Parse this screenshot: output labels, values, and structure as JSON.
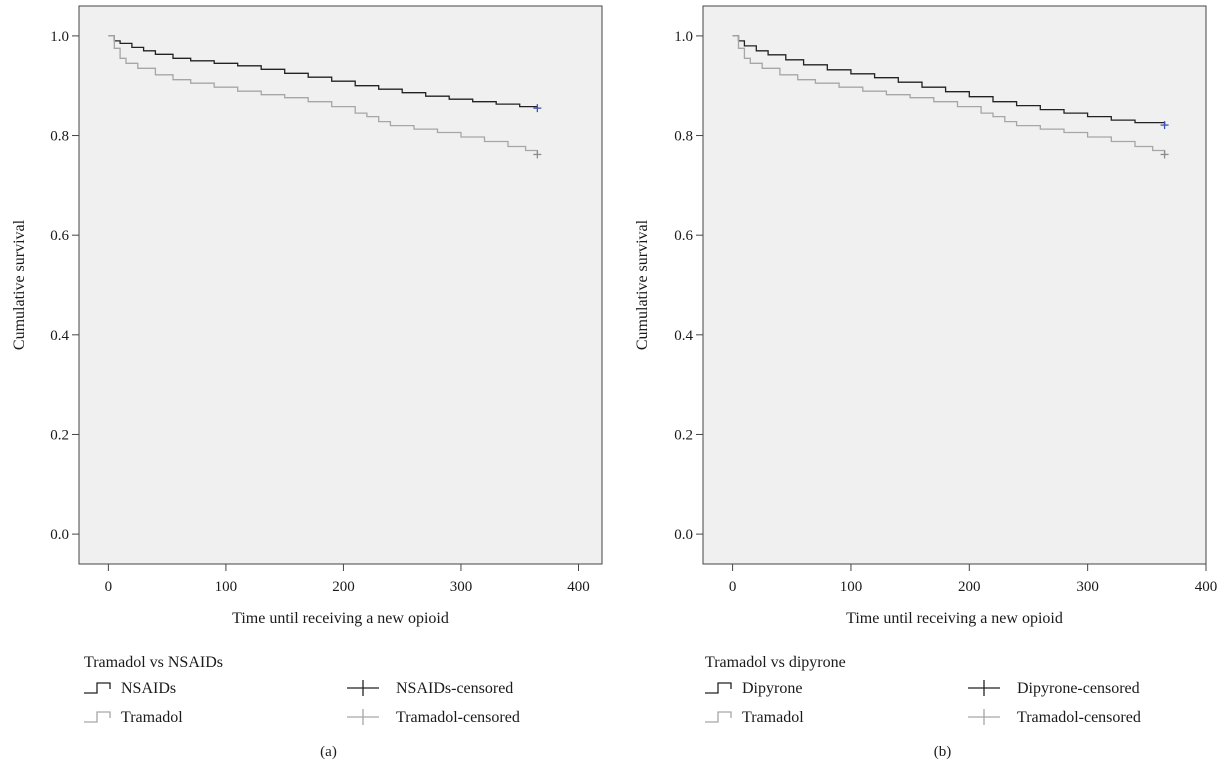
{
  "chart_data": [
    {
      "type": "line",
      "panel_label": "(a)",
      "xlabel": "Time until receiving a new opioid",
      "ylabel": "Cumulative survival",
      "xlim": [
        -25,
        420
      ],
      "ylim": [
        -0.06,
        1.06
      ],
      "x_ticks": [
        0,
        100,
        200,
        300,
        400
      ],
      "y_ticks": [
        0.0,
        0.2,
        0.4,
        0.6,
        0.8,
        1.0
      ],
      "grid": false,
      "legend": {
        "title": "Tramadol vs NSAIDs",
        "placement": "bottom",
        "entries": [
          "NSAIDs",
          "Tramadol",
          "NSAIDs-censored",
          "Tramadol-censored"
        ]
      },
      "colors": {
        "background": "#f0f0f0",
        "series_1": "#222222",
        "series_2": "#a6a6a6",
        "censor_1": "#3b55b0",
        "censor_2": "#8c8c8c"
      },
      "series": [
        {
          "name": "NSAIDs",
          "x": [
            0,
            5,
            10,
            20,
            30,
            40,
            55,
            70,
            90,
            110,
            130,
            150,
            170,
            190,
            210,
            230,
            250,
            270,
            290,
            310,
            330,
            350,
            365
          ],
          "y": [
            1.0,
            0.99,
            0.985,
            0.977,
            0.97,
            0.963,
            0.955,
            0.95,
            0.945,
            0.94,
            0.933,
            0.925,
            0.917,
            0.909,
            0.9,
            0.893,
            0.886,
            0.879,
            0.873,
            0.868,
            0.863,
            0.858,
            0.855
          ],
          "censored": {
            "x": 365,
            "y": 0.855
          }
        },
        {
          "name": "Tramadol",
          "x": [
            0,
            5,
            10,
            15,
            25,
            40,
            55,
            70,
            90,
            110,
            130,
            150,
            170,
            190,
            210,
            220,
            230,
            240,
            260,
            280,
            300,
            320,
            340,
            355,
            365
          ],
          "y": [
            1.0,
            0.975,
            0.955,
            0.945,
            0.935,
            0.922,
            0.912,
            0.905,
            0.897,
            0.889,
            0.882,
            0.876,
            0.868,
            0.858,
            0.845,
            0.838,
            0.828,
            0.82,
            0.813,
            0.806,
            0.797,
            0.788,
            0.778,
            0.77,
            0.762
          ],
          "censored": {
            "x": 365,
            "y": 0.762
          }
        }
      ]
    },
    {
      "type": "line",
      "panel_label": "(b)",
      "xlabel": "Time until receiving a new opioid",
      "ylabel": "Cumulative survival",
      "xlim": [
        -25,
        400
      ],
      "ylim": [
        -0.06,
        1.06
      ],
      "x_ticks": [
        0,
        100,
        200,
        300,
        400
      ],
      "y_ticks": [
        0.0,
        0.2,
        0.4,
        0.6,
        0.8,
        1.0
      ],
      "grid": false,
      "legend": {
        "title": "Tramadol vs dipyrone",
        "placement": "bottom",
        "entries": [
          "Dipyrone",
          "Tramadol",
          "Dipyrone-censored",
          "Tramadol-censored"
        ]
      },
      "colors": {
        "background": "#f0f0f0",
        "series_1": "#222222",
        "series_2": "#a6a6a6",
        "censor_1": "#3b55b0",
        "censor_2": "#8c8c8c"
      },
      "series": [
        {
          "name": "Dipyrone",
          "x": [
            0,
            5,
            10,
            20,
            30,
            45,
            60,
            80,
            100,
            120,
            140,
            160,
            180,
            200,
            220,
            240,
            260,
            280,
            300,
            320,
            340,
            365
          ],
          "y": [
            1.0,
            0.99,
            0.98,
            0.97,
            0.962,
            0.952,
            0.942,
            0.932,
            0.924,
            0.916,
            0.907,
            0.897,
            0.888,
            0.878,
            0.868,
            0.86,
            0.852,
            0.845,
            0.838,
            0.831,
            0.826,
            0.821
          ],
          "censored": {
            "x": 365,
            "y": 0.821
          }
        },
        {
          "name": "Tramadol",
          "x": [
            0,
            5,
            10,
            15,
            25,
            40,
            55,
            70,
            90,
            110,
            130,
            150,
            170,
            190,
            210,
            220,
            230,
            240,
            260,
            280,
            300,
            320,
            340,
            355,
            365
          ],
          "y": [
            1.0,
            0.975,
            0.955,
            0.945,
            0.935,
            0.922,
            0.912,
            0.905,
            0.897,
            0.889,
            0.882,
            0.876,
            0.868,
            0.858,
            0.845,
            0.838,
            0.828,
            0.82,
            0.813,
            0.806,
            0.797,
            0.788,
            0.778,
            0.77,
            0.762
          ],
          "censored": {
            "x": 365,
            "y": 0.762
          }
        }
      ]
    }
  ]
}
